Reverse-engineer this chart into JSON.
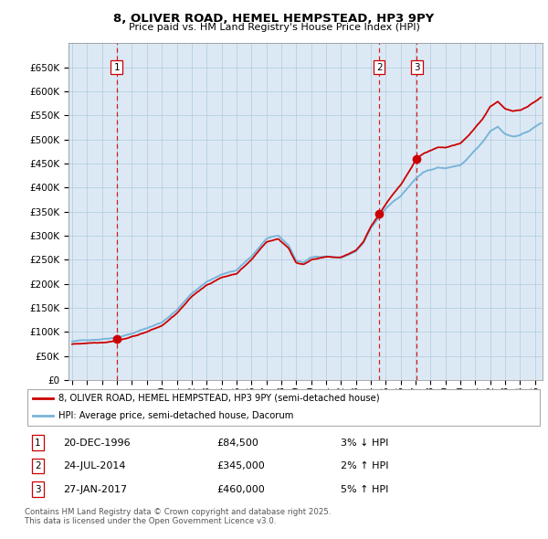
{
  "title": "8, OLIVER ROAD, HEMEL HEMPSTEAD, HP3 9PY",
  "subtitle": "Price paid vs. HM Land Registry's House Price Index (HPI)",
  "ylim": [
    0,
    700000
  ],
  "yticks": [
    0,
    50000,
    100000,
    150000,
    200000,
    250000,
    300000,
    350000,
    400000,
    450000,
    500000,
    550000,
    600000,
    650000
  ],
  "ytick_labels": [
    "£0",
    "£50K",
    "£100K",
    "£150K",
    "£200K",
    "£250K",
    "£300K",
    "£350K",
    "£400K",
    "£450K",
    "£500K",
    "£550K",
    "£600K",
    "£650K"
  ],
  "xlim_start": 1993.75,
  "xlim_end": 2025.5,
  "sales": [
    {
      "year": 1996.97,
      "price": 84500,
      "label": "1"
    },
    {
      "year": 2014.56,
      "price": 345000,
      "label": "2"
    },
    {
      "year": 2017.08,
      "price": 460000,
      "label": "3"
    }
  ],
  "sale_vlines": [
    1996.97,
    2014.56,
    2017.08
  ],
  "hpi_color": "#7ab4d8",
  "price_color": "#cc0000",
  "background_color": "#dce9f5",
  "grid_color": "#b8cfe0",
  "legend_label_price": "8, OLIVER ROAD, HEMEL HEMPSTEAD, HP3 9PY (semi-detached house)",
  "legend_label_hpi": "HPI: Average price, semi-detached house, Dacorum",
  "table_entries": [
    {
      "num": "1",
      "date": "20-DEC-1996",
      "price": "£84,500",
      "hpi": "3% ↓ HPI"
    },
    {
      "num": "2",
      "date": "24-JUL-2014",
      "price": "£345,000",
      "hpi": "2% ↑ HPI"
    },
    {
      "num": "3",
      "date": "27-JAN-2017",
      "price": "£460,000",
      "hpi": "5% ↑ HPI"
    }
  ],
  "footnote": "Contains HM Land Registry data © Crown copyright and database right 2025.\nThis data is licensed under the Open Government Licence v3.0."
}
